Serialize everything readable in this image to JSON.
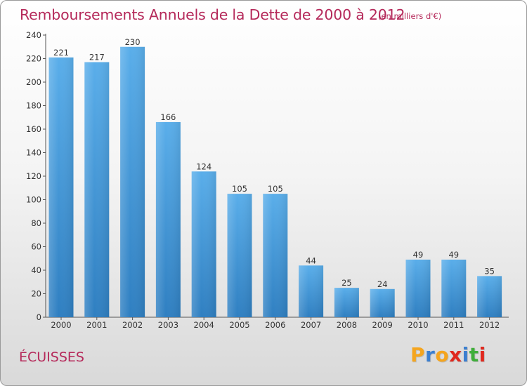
{
  "chart_data": {
    "type": "bar",
    "title": "Remboursements Annuels de la Dette de 2000 à 2012",
    "subtitle": "(en milliers d'€)",
    "categories": [
      "2000",
      "2001",
      "2002",
      "2003",
      "2004",
      "2005",
      "2006",
      "2007",
      "2008",
      "2009",
      "2010",
      "2011",
      "2012"
    ],
    "values": [
      221,
      217,
      230,
      166,
      124,
      105,
      105,
      44,
      25,
      24,
      49,
      49,
      35
    ],
    "ylim": [
      0,
      240
    ],
    "yticks": [
      0,
      20,
      40,
      60,
      80,
      100,
      120,
      140,
      160,
      180,
      200,
      220,
      240
    ],
    "grid": false,
    "bar_color_top": "#5aaeea",
    "bar_color_bottom": "#2f7fc1"
  },
  "commune": "ÉCUISSES",
  "logo": {
    "letters": [
      "P",
      "r",
      "o",
      "x",
      "i",
      "t",
      "i"
    ],
    "colors": [
      "#f5a51e",
      "#3b7fd0",
      "#f5a51e",
      "#e0281e",
      "#3b7fd0",
      "#3fae3a",
      "#e0281e"
    ]
  }
}
